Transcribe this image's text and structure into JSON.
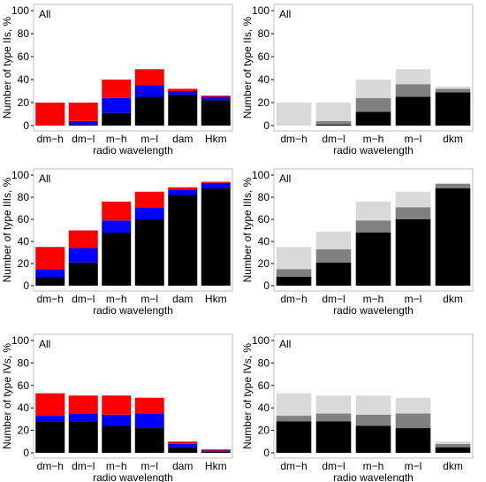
{
  "chart_data": [
    {
      "type": "bar",
      "stacked": true,
      "panel": "top-left",
      "tag": "All",
      "ylabel": "Number of type IIs, %",
      "xlabel": "radio  wavelength",
      "categories": [
        "dm−h",
        "dm−l",
        "m−h",
        "m−l",
        "dam",
        "Hkm"
      ],
      "ylim": [
        0,
        100
      ],
      "yticks": [
        0,
        20,
        40,
        60,
        80,
        100
      ],
      "grid": false,
      "series": [
        {
          "color": "#000000",
          "values": [
            0,
            1,
            11,
            25,
            27,
            22
          ]
        },
        {
          "color": "#0000ff",
          "values": [
            0,
            3,
            13,
            10,
            3,
            3
          ]
        },
        {
          "color": "#ff0000",
          "values": [
            20,
            16,
            16,
            14,
            2,
            1
          ]
        }
      ]
    },
    {
      "type": "bar",
      "stacked": true,
      "panel": "top-right",
      "tag": "All",
      "ylabel": "Number of type IIs, %",
      "xlabel": "radio  wavelength",
      "categories": [
        "dm−h",
        "dm−l",
        "m−h",
        "m−l",
        "dkm"
      ],
      "ylim": [
        0,
        100
      ],
      "yticks": [
        0,
        20,
        40,
        60,
        80,
        100
      ],
      "grid": false,
      "series": [
        {
          "color": "#000000",
          "values": [
            0,
            1,
            12,
            25,
            29
          ]
        },
        {
          "color": "#808080",
          "values": [
            0,
            3,
            12,
            11,
            3
          ]
        },
        {
          "color": "#d9d9d9",
          "values": [
            20,
            16,
            16,
            13,
            2
          ]
        }
      ]
    },
    {
      "type": "bar",
      "stacked": true,
      "panel": "middle-left",
      "tag": "All",
      "ylabel": "Number of type IIIs, %",
      "xlabel": "radio  wavelength",
      "categories": [
        "dm−h",
        "dm−l",
        "m−h",
        "m−l",
        "dam",
        "Hkm"
      ],
      "ylim": [
        0,
        100
      ],
      "yticks": [
        0,
        20,
        40,
        60,
        80,
        100
      ],
      "grid": false,
      "series": [
        {
          "color": "#000000",
          "values": [
            8,
            21,
            48,
            60,
            82,
            88
          ]
        },
        {
          "color": "#0000ff",
          "values": [
            7,
            13,
            11,
            11,
            5,
            5
          ]
        },
        {
          "color": "#ff0000",
          "values": [
            20,
            16,
            17,
            14,
            2,
            1
          ]
        }
      ]
    },
    {
      "type": "bar",
      "stacked": true,
      "panel": "middle-right",
      "tag": "All",
      "ylabel": "Number of type IIIs, %",
      "xlabel": "radio  wavelength",
      "categories": [
        "dm−h",
        "dm−l",
        "m−h",
        "m−l",
        "dkm"
      ],
      "ylim": [
        0,
        100
      ],
      "yticks": [
        0,
        20,
        40,
        60,
        80,
        100
      ],
      "grid": false,
      "series": [
        {
          "color": "#000000",
          "values": [
            8,
            21,
            48,
            60,
            88
          ]
        },
        {
          "color": "#808080",
          "values": [
            7,
            12,
            11,
            11,
            4
          ]
        },
        {
          "color": "#d9d9d9",
          "values": [
            20,
            16,
            17,
            14,
            1
          ]
        }
      ]
    },
    {
      "type": "bar",
      "stacked": true,
      "panel": "bottom-left",
      "tag": "All",
      "ylabel": "Number of type IVs, %",
      "xlabel": "radio  wavelength",
      "categories": [
        "dm−h",
        "dm−l",
        "m−h",
        "m−l",
        "dam",
        "Hkm"
      ],
      "ylim": [
        0,
        100
      ],
      "yticks": [
        0,
        20,
        40,
        60,
        80,
        100
      ],
      "grid": false,
      "series": [
        {
          "color": "#000000",
          "values": [
            28,
            28,
            24,
            22,
            5,
            1
          ]
        },
        {
          "color": "#0000ff",
          "values": [
            5,
            7,
            10,
            13,
            3,
            1
          ]
        },
        {
          "color": "#ff0000",
          "values": [
            20,
            16,
            17,
            14,
            2,
            1
          ]
        }
      ]
    },
    {
      "type": "bar",
      "stacked": true,
      "panel": "bottom-right",
      "tag": "All",
      "ylabel": "Number of type IVs, %",
      "xlabel": "radio  wavelength",
      "categories": [
        "dm−h",
        "dm−l",
        "m−h",
        "m−l",
        "dkm"
      ],
      "ylim": [
        0,
        100
      ],
      "yticks": [
        0,
        20,
        40,
        60,
        80,
        100
      ],
      "grid": false,
      "series": [
        {
          "color": "#000000",
          "values": [
            28,
            28,
            24,
            22,
            5
          ]
        },
        {
          "color": "#808080",
          "values": [
            5,
            7,
            10,
            13,
            3
          ]
        },
        {
          "color": "#d9d9d9",
          "values": [
            20,
            16,
            17,
            14,
            2
          ]
        }
      ]
    }
  ]
}
